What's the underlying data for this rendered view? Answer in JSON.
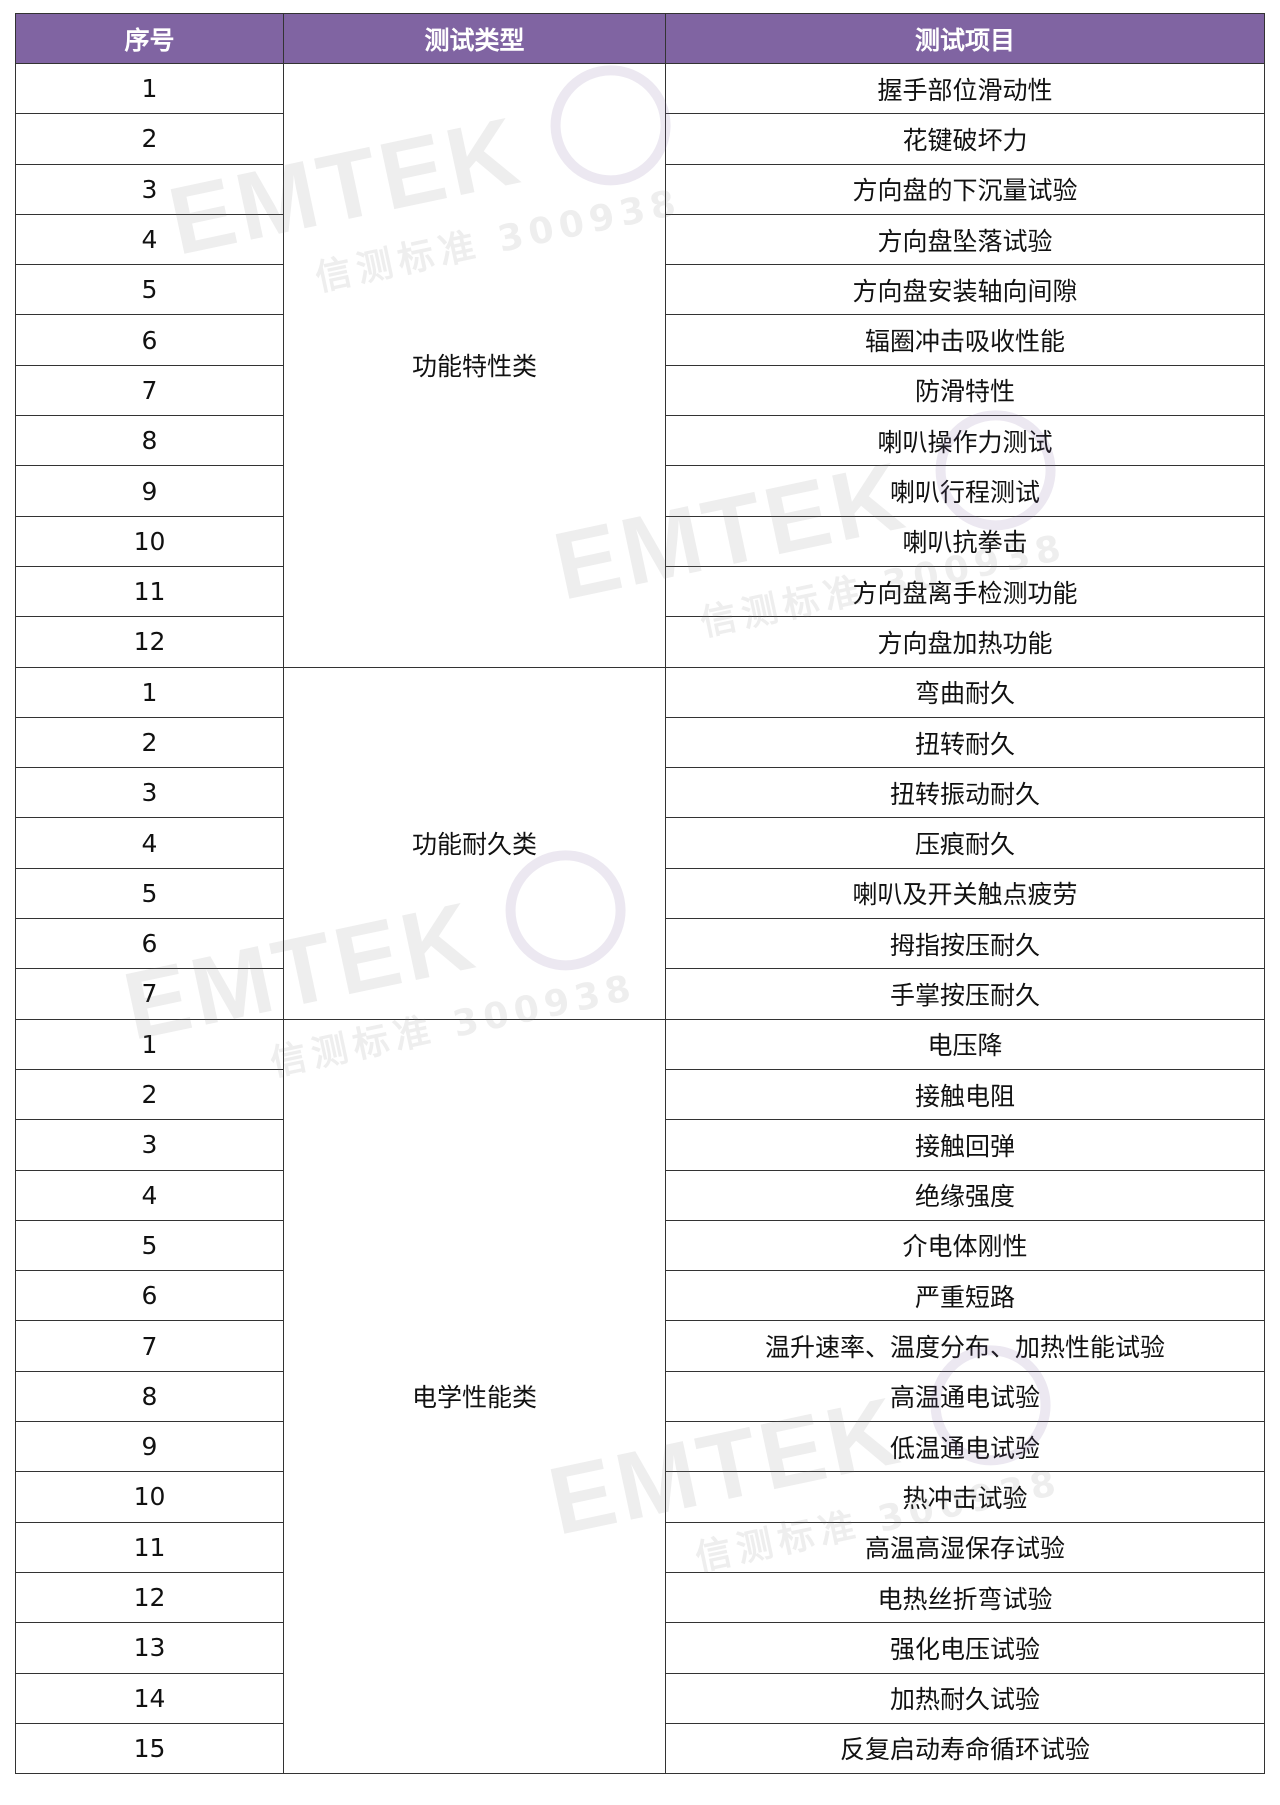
{
  "table": {
    "headers": [
      "序号",
      "测试类型",
      "测试项目"
    ],
    "header_color": "#8064a2",
    "groups": [
      {
        "category": "功能特性类",
        "items": [
          "握手部位滑动性",
          "花键破坏力",
          "方向盘的下沉量试验",
          "方向盘坠落试验",
          "方向盘安装轴向间隙",
          "辐圈冲击吸收性能",
          "防滑特性",
          "喇叭操作力测试",
          "喇叭行程测试",
          "喇叭抗拳击",
          "方向盘离手检测功能",
          "方向盘加热功能"
        ]
      },
      {
        "category": "功能耐久类",
        "items": [
          "弯曲耐久",
          "扭转耐久",
          "扭转振动耐久",
          "压痕耐久",
          "喇叭及开关触点疲劳",
          "拇指按压耐久",
          "手掌按压耐久"
        ]
      },
      {
        "category": "电学性能类",
        "items": [
          "电压降",
          "接触电阻",
          "接触回弹",
          "绝缘强度",
          "介电体刚性",
          "严重短路",
          "温升速率、温度分布、加热性能试验",
          "高温通电试验",
          "低温通电试验",
          "热冲击试验",
          "高温高湿保存试验",
          "电热丝折弯试验",
          "强化电压试验",
          "加热耐久试验",
          "反复启动寿命循环试验"
        ]
      }
    ]
  },
  "watermark": {
    "logo": "EMTEK",
    "text": "信测标准 300938"
  }
}
